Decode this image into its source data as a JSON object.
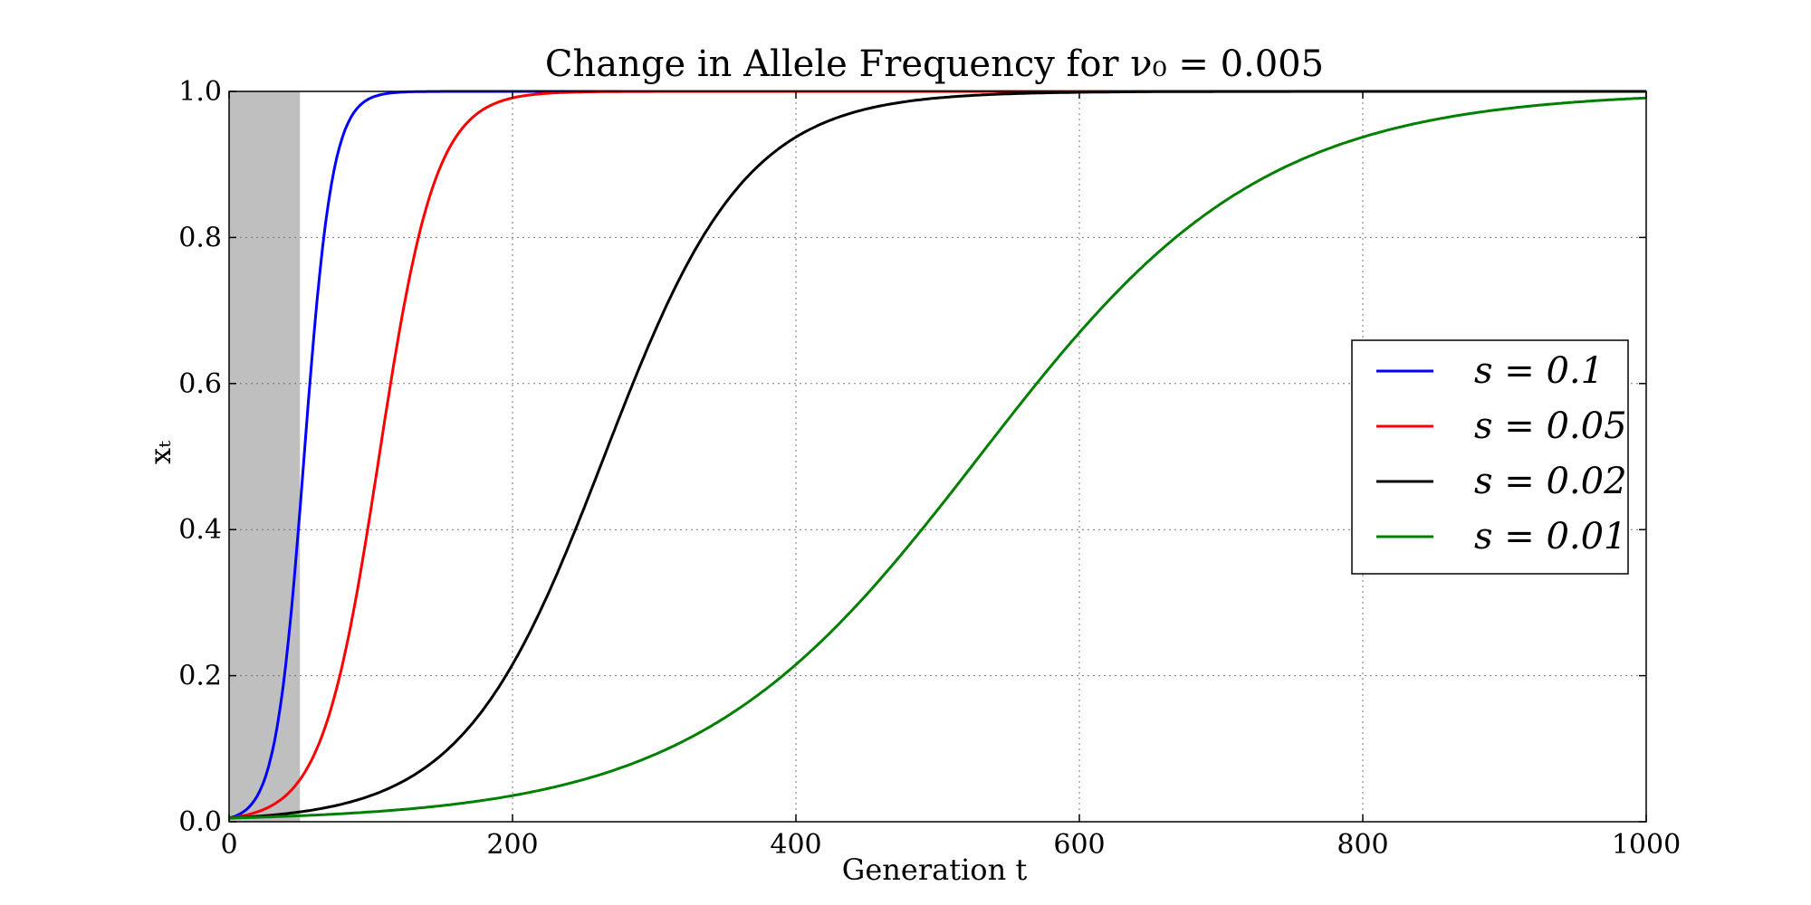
{
  "chart_data": {
    "type": "line",
    "title": "Change in Allele Frequency for ν₀ = 0.005",
    "xlabel": "Generation t",
    "ylabel": "xₜ",
    "xlim": [
      0,
      1000
    ],
    "ylim": [
      0,
      1.0
    ],
    "xticks": [
      0,
      200,
      400,
      600,
      800,
      1000
    ],
    "yticks": [
      0.0,
      0.2,
      0.4,
      0.6,
      0.8,
      1.0
    ],
    "xtick_labels": [
      "0",
      "200",
      "400",
      "600",
      "800",
      "1000"
    ],
    "ytick_labels": [
      "0.0",
      "0.2",
      "0.4",
      "0.6",
      "0.8",
      "1.0"
    ],
    "grid": true,
    "legend_position": "right-center",
    "shaded_region": {
      "x": [
        0,
        50
      ],
      "color": "#bfbfbf"
    },
    "x0": 0.005,
    "series": [
      {
        "name": "s = 0.1",
        "s": 0.1,
        "color": "#0000ff"
      },
      {
        "name": "s = 0.05",
        "s": 0.05,
        "color": "#ff0000"
      },
      {
        "name": "s = 0.02",
        "s": 0.02,
        "color": "#000000"
      },
      {
        "name": "s = 0.01",
        "s": 0.01,
        "color": "#008000"
      }
    ]
  }
}
